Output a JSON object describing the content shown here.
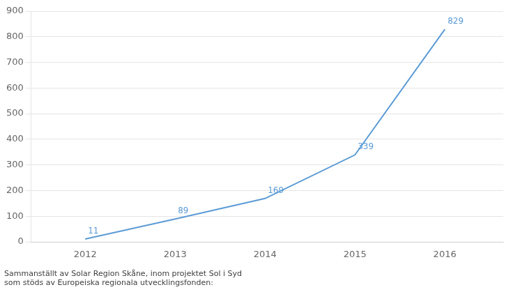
{
  "chart_data": {
    "type": "line",
    "x": [
      2012,
      2013,
      2014,
      2015,
      2016
    ],
    "values": [
      11,
      89,
      169,
      339,
      829
    ],
    "color": "#5B9BD5",
    "xlim": [
      2011.4,
      2016.65
    ],
    "xticks": [
      2012,
      2013,
      2014,
      2015,
      2016
    ],
    "ylim": [
      0,
      900
    ],
    "yticks": [
      0,
      100,
      200,
      300,
      400,
      500,
      600,
      700,
      800,
      900
    ],
    "grid": true,
    "data_labels": true,
    "annotations": [
      "Sammanställt av Solar Region Skåne, inom projektet Sol i Syd\nsom stöds av Europeiska regionala utvecklingsfonden:"
    ]
  }
}
